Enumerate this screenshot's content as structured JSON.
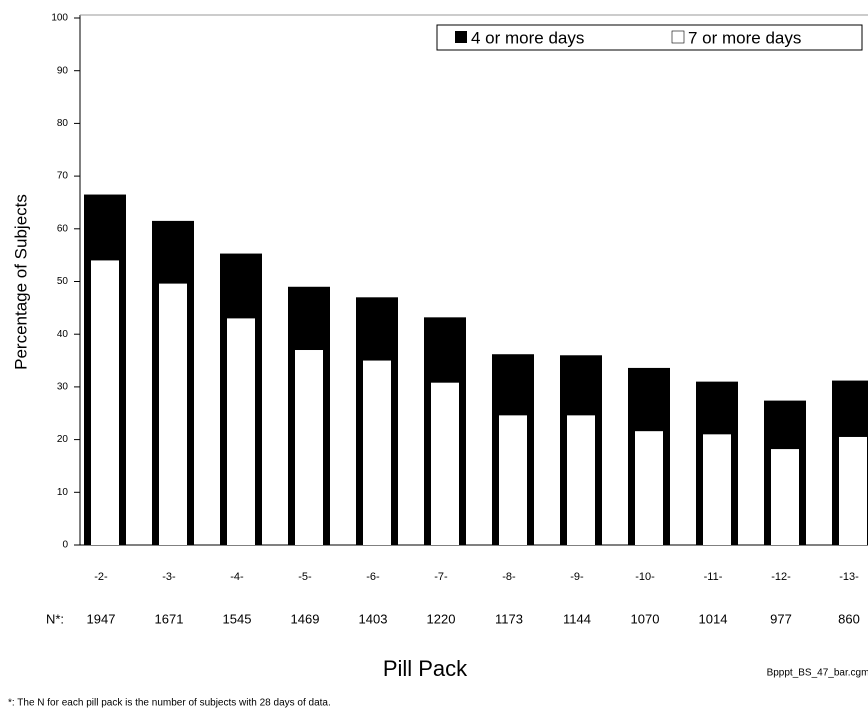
{
  "chart_data": {
    "type": "bar",
    "y_label": "Percentage of Subjects",
    "x_label": "Pill Pack",
    "categories": [
      "-2-",
      "-3-",
      "-4-",
      "-5-",
      "-6-",
      "-7-",
      "-8-",
      "-9-",
      "-10-",
      "-11-",
      "-12-",
      "-13-"
    ],
    "series": [
      {
        "name": "4 or more days",
        "color": "#000000",
        "values": [
          66.5,
          61.5,
          55.3,
          49,
          47,
          43.2,
          36.2,
          36,
          33.6,
          31,
          27.4,
          31.2
        ]
      },
      {
        "name": "7 or more days",
        "color": "#ffffff",
        "values": [
          54,
          49.6,
          43,
          37,
          35,
          30.8,
          24.6,
          24.6,
          21.6,
          21,
          18.2,
          20.5
        ]
      }
    ],
    "n_label": "N*:",
    "n_values": [
      1947,
      1671,
      1545,
      1469,
      1403,
      1220,
      1173,
      1144,
      1070,
      1014,
      977,
      860
    ],
    "ylim": [
      0,
      100
    ],
    "yticks": [
      0,
      10,
      20,
      30,
      40,
      50,
      60,
      70,
      80,
      90,
      100
    ],
    "legend": "top-right",
    "source_file": "Bpppt_BS_47_bar.cgm",
    "footnote": "*: The N for each pill pack is the number of subjects with 28 days of data."
  }
}
